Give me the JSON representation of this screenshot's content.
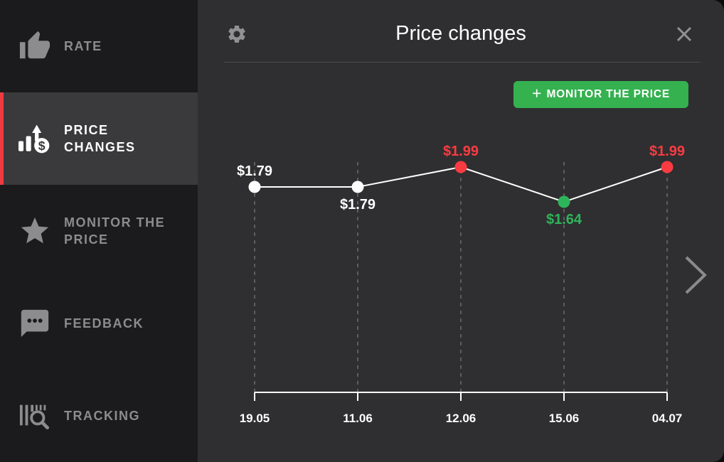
{
  "colors": {
    "page_bg": "#0b0b0c",
    "sidebar_bg": "#1b1b1d",
    "sidebar_active_bg": "#3a3a3c",
    "sidebar_text": "#8c8c8e",
    "accent_red": "#ee3b40",
    "panel_bg": "#2f2f31",
    "divider": "#4c4c4e",
    "icon_gray": "#919193",
    "button_green": "#35b150"
  },
  "sidebar": {
    "items": [
      {
        "label": "RATE",
        "icon": "thumbs-up-icon",
        "active": false
      },
      {
        "label": "PRICE CHANGES",
        "icon": "price-chart-icon",
        "active": true
      },
      {
        "label": "MONITOR THE PRICE",
        "icon": "star-icon",
        "active": false
      },
      {
        "label": "FEEDBACK",
        "icon": "chat-icon",
        "active": false
      },
      {
        "label": "TRACKING",
        "icon": "barcode-search-icon",
        "active": false
      }
    ]
  },
  "header": {
    "title": "Price changes",
    "left_icon": "gear-icon",
    "right_icon": "close-icon"
  },
  "toolbar": {
    "monitor_button": {
      "plus_icon": "+",
      "label": "MONITOR THE PRICE"
    }
  },
  "pager": {
    "next_icon": "chevron-right-icon"
  },
  "chart_data": {
    "type": "line",
    "title": "Price changes",
    "categories": [
      "19.05",
      "11.06",
      "12.06",
      "15.06",
      "04.07"
    ],
    "series": [
      {
        "name": "price",
        "values": [
          1.79,
          1.79,
          1.99,
          1.64,
          1.99
        ]
      }
    ],
    "points": [
      {
        "date": "19.05",
        "value": 1.79,
        "label": "$1.79",
        "state": "normal",
        "label_position": "above"
      },
      {
        "date": "11.06",
        "value": 1.79,
        "label": "$1.79",
        "state": "normal",
        "label_position": "below"
      },
      {
        "date": "12.06",
        "value": 1.99,
        "label": "$1.99",
        "state": "high",
        "label_position": "above"
      },
      {
        "date": "15.06",
        "value": 1.64,
        "label": "$1.64",
        "state": "low",
        "label_position": "below"
      },
      {
        "date": "04.07",
        "value": 1.99,
        "label": "$1.99",
        "state": "high",
        "label_position": "above"
      }
    ],
    "colors": {
      "normal": "#ffffff",
      "high": "#fb3b42",
      "low": "#2eb45a",
      "line": "#ffffff",
      "grid": "#5d5d5d",
      "axis": "#ffffff",
      "tick_text": "#ffffff"
    },
    "ylim": [
      1.6,
      2.05
    ],
    "grid": "vertical-dashed",
    "legend": "none"
  }
}
